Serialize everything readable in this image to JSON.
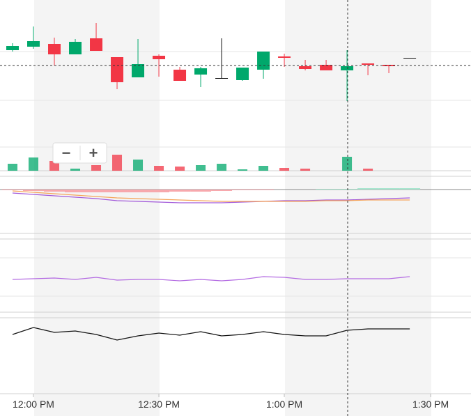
{
  "chart_data": {
    "type": "candlestick",
    "x": [
      0,
      1,
      2,
      3,
      4,
      5,
      6,
      7,
      8,
      9,
      10,
      11,
      12,
      13,
      14,
      15,
      16,
      17,
      18,
      19
    ],
    "xlim": [
      -0.6,
      21.93
    ],
    "xticks": [
      {
        "value": 1,
        "label": "12:00 PM"
      },
      {
        "value": 7,
        "label": "12:30 PM"
      },
      {
        "value": 13,
        "label": "1:00 PM"
      },
      {
        "value": 20,
        "label": "1:30 PM"
      }
    ],
    "open": [
      173,
      178,
      182,
      167,
      190,
      163,
      134,
      165,
      145,
      138,
      133,
      130,
      145,
      164,
      150,
      152,
      144,
      154,
      152,
      162
    ],
    "high": [
      183,
      207,
      191,
      189,
      212,
      163,
      189,
      167,
      149,
      149,
      190,
      148,
      171,
      168,
      159,
      159,
      173,
      154,
      152,
      162
    ],
    "low": [
      171,
      175,
      151,
      167,
      172,
      117,
      134,
      135,
      129,
      120,
      133,
      129,
      132,
      149,
      144,
      144,
      100,
      137,
      140,
      162
    ],
    "close": [
      179,
      186,
      167,
      185,
      172,
      127,
      153,
      160,
      129,
      147,
      133,
      148,
      171,
      162,
      146,
      144,
      150,
      152,
      150,
      162
    ],
    "ylim": [
      0,
      245
    ],
    "up_color": "#00a86b",
    "down_color": "#f23645",
    "volume": {
      "values": [
        10,
        19,
        14,
        3,
        8,
        23,
        16,
        7,
        6,
        8,
        10,
        2,
        7,
        4,
        3,
        0,
        20,
        3,
        0,
        0
      ],
      "ylim": [
        0,
        100
      ]
    },
    "macd": {
      "ylim": [
        -63,
        19
      ],
      "histogram": [
        -1,
        -2,
        -3,
        -4,
        -4,
        -4,
        -4,
        -4,
        -3,
        -3,
        -2,
        -1,
        -1,
        0,
        0,
        1,
        1,
        2,
        2,
        2
      ],
      "hist_colors": [
        "#f7a8ad",
        "#a8e6cf"
      ],
      "series": [
        {
          "color": "#a259d9",
          "values": [
            -5,
            -7,
            -9,
            -11,
            -13,
            -16,
            -17,
            -18,
            -19,
            -19,
            -19,
            -18,
            -17,
            -16,
            -16,
            -15,
            -15,
            -14,
            -13,
            -12
          ]
        },
        {
          "color": "#f5a55a",
          "values": [
            -2,
            -4,
            -6,
            -8,
            -10,
            -12,
            -13,
            -14,
            -15,
            -16,
            -17,
            -17,
            -17,
            -17,
            -17,
            -16,
            -16,
            -15,
            -15,
            -15
          ]
        }
      ]
    },
    "rsi": {
      "ylim": [
        0,
        105
      ],
      "color": "#b36ae2",
      "values": [
        47,
        48,
        49,
        47,
        50,
        46,
        47,
        47,
        45,
        47,
        45,
        47,
        51,
        50,
        47,
        47,
        48,
        48,
        48,
        51
      ]
    },
    "lower": {
      "ylim": [
        0,
        109
      ],
      "color": "#111111",
      "values": [
        85,
        95,
        88,
        90,
        85,
        77,
        83,
        87,
        84,
        89,
        83,
        85,
        89,
        85,
        83,
        83,
        91,
        93,
        93,
        93
      ]
    }
  },
  "zoom": {
    "out": "−",
    "in": "+"
  }
}
